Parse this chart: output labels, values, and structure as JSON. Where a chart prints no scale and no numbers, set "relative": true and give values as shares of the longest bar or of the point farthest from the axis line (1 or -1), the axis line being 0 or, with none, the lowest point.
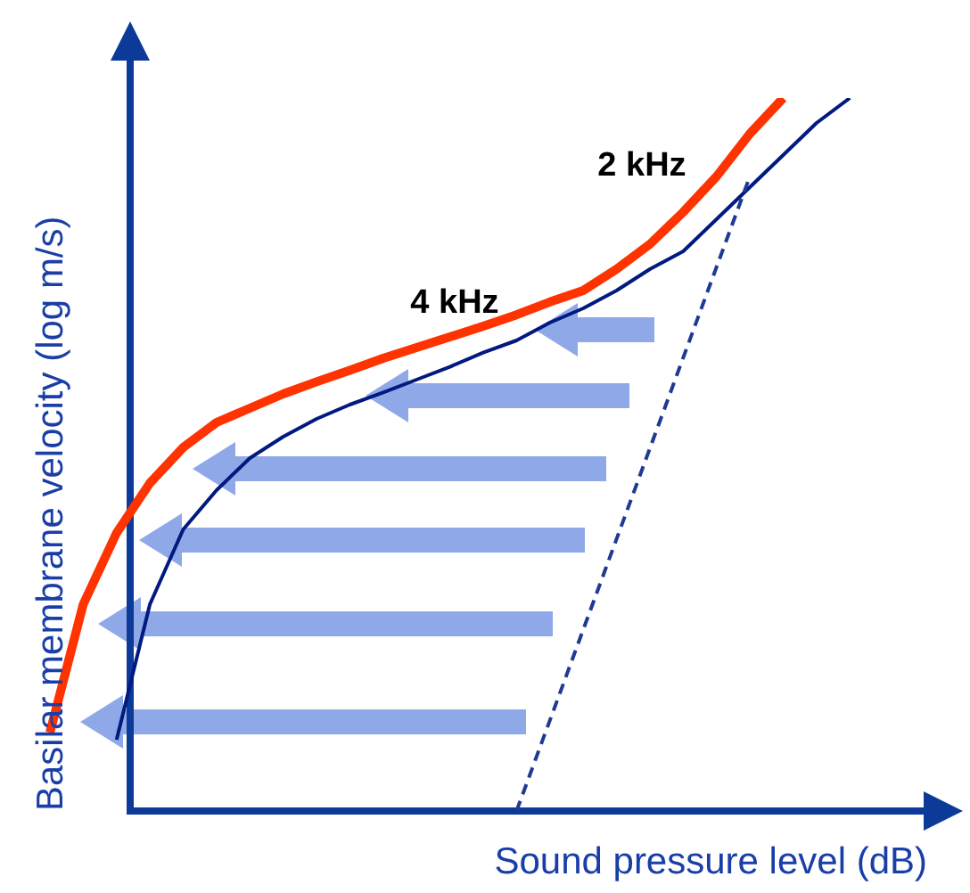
{
  "chart_data": {
    "type": "line",
    "relative": true,
    "xlabel": "Sound pressure level (dB)",
    "ylabel": "Basilar membrane velocity (log m/s)",
    "marker": "none",
    "categories": [
      null,
      null,
      null,
      null,
      null,
      null,
      null,
      null,
      null,
      null,
      null,
      null,
      null,
      null,
      null,
      null,
      null,
      null,
      null,
      null,
      null,
      null,
      null,
      null,
      null,
      null,
      null
    ],
    "series": [
      {
        "color": "#ff3300",
        "line_style": "solid",
        "values": [
          0.11,
          0.29,
          0.39,
          0.46,
          0.51,
          0.545,
          0.565,
          0.585,
          0.602,
          0.618,
          0.635,
          0.65,
          0.665,
          0.68,
          0.696,
          0.714,
          0.73,
          0.76,
          0.795,
          0.84,
          0.89,
          0.95,
          1,
          null,
          null,
          null,
          null
        ]
      },
      {
        "color": "#001a80",
        "line_style": "solid",
        "values": [
          null,
          null,
          0.1,
          0.29,
          0.395,
          0.45,
          0.495,
          0.525,
          0.55,
          0.57,
          0.587,
          0.605,
          0.623,
          0.643,
          0.66,
          0.685,
          0.705,
          0.73,
          0.76,
          0.785,
          0.83,
          0.875,
          0.92,
          0.965,
          1,
          null,
          null
        ]
      },
      {
        "color": "#1f3a93",
        "line_style": "dashed",
        "values": [
          null,
          null,
          null,
          null,
          null,
          null,
          null,
          null,
          null,
          null,
          null,
          null,
          null,
          null,
          0,
          null,
          null,
          null,
          null,
          null,
          null,
          0.89,
          null,
          null,
          null,
          null,
          null
        ]
      }
    ],
    "annotations": [
      "2 kHz",
      "4 kHz"
    ]
  }
}
